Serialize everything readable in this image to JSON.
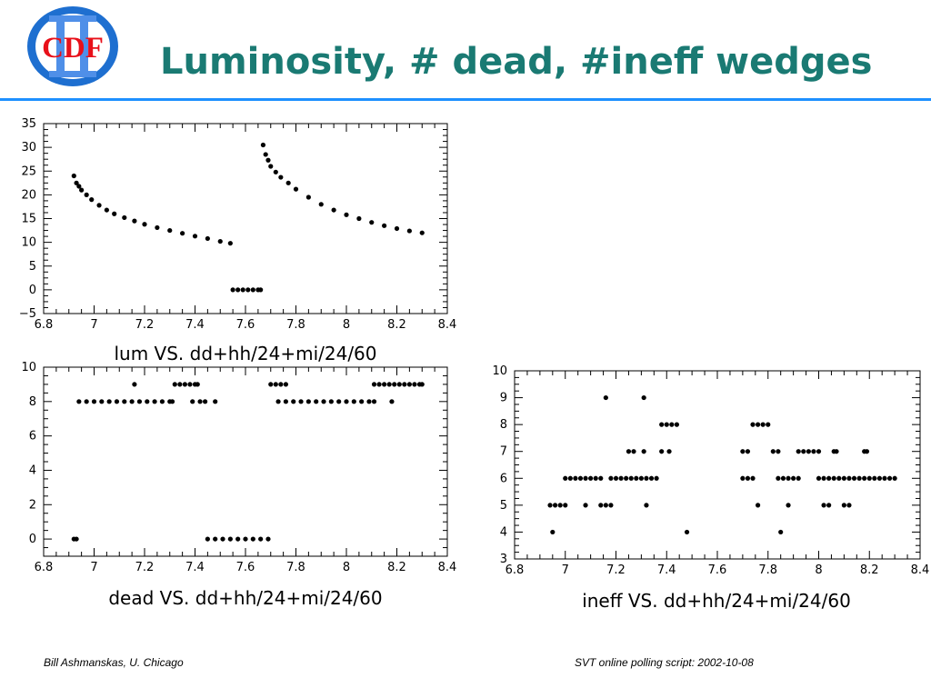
{
  "slide": {
    "title": "Luminosity, # dead, #ineff wedges",
    "logo_text": "CDF",
    "footer_left": "Bill Ashmanskas, U. Chicago",
    "footer_right": "SVT online polling script: 2002-10-08"
  },
  "colors": {
    "title": "#1a7a73",
    "rule": "#1e90ff",
    "logo_ring": "#1e6fd0",
    "logo_text": "#e8101a",
    "markers": "#000000"
  },
  "chart_data": [
    {
      "id": "lum",
      "type": "scatter",
      "xlabel": "lum VS. dd+hh/24+mi/24/60",
      "ylabel": "",
      "title": "",
      "xlim": [
        6.8,
        8.4
      ],
      "ylim": [
        -5,
        35
      ],
      "xticks": [
        6.8,
        7,
        7.2,
        7.4,
        7.6,
        7.8,
        8,
        8.2,
        8.4
      ],
      "xtick_labels": [
        "6.8",
        "7",
        "7.2",
        "7.4",
        "7.6",
        "7.8",
        "8",
        "8.2",
        "8.4"
      ],
      "yticks": [
        -5,
        0,
        5,
        10,
        15,
        20,
        25,
        30,
        35
      ],
      "ytick_labels": [
        "−5",
        "0",
        "5",
        "10",
        "15",
        "20",
        "25",
        "30",
        "35"
      ],
      "series": [
        {
          "x": [
            6.92,
            6.93,
            6.94,
            6.95,
            6.97,
            6.99,
            7.02,
            7.05,
            7.08,
            7.12,
            7.16,
            7.2,
            7.25,
            7.3,
            7.35,
            7.4,
            7.45,
            7.5,
            7.54,
            7.55,
            7.57,
            7.59,
            7.61,
            7.63,
            7.65,
            7.66,
            7.67,
            7.68,
            7.69,
            7.7,
            7.72,
            7.74,
            7.77,
            7.8,
            7.85,
            7.9,
            7.95,
            8.0,
            8.05,
            8.1,
            8.15,
            8.2,
            8.25,
            8.3
          ],
          "y": [
            24,
            22.5,
            21.8,
            21,
            20,
            19,
            17.8,
            16.8,
            16,
            15.2,
            14.5,
            13.8,
            13.1,
            12.5,
            11.9,
            11.3,
            10.8,
            10.2,
            9.8,
            0,
            0,
            0,
            0,
            0,
            0,
            0,
            30.5,
            28.5,
            27.3,
            26,
            24.8,
            23.7,
            22.5,
            21.2,
            19.5,
            18,
            16.8,
            15.8,
            15,
            14.2,
            13.5,
            12.9,
            12.4,
            12
          ]
        }
      ]
    },
    {
      "id": "dead",
      "type": "scatter",
      "xlabel": "dead VS. dd+hh/24+mi/24/60",
      "ylabel": "",
      "title": "",
      "xlim": [
        6.8,
        8.4
      ],
      "ylim": [
        -1,
        10
      ],
      "xticks": [
        6.8,
        7,
        7.2,
        7.4,
        7.6,
        7.8,
        8,
        8.2,
        8.4
      ],
      "xtick_labels": [
        "6.8",
        "7",
        "7.2",
        "7.4",
        "7.6",
        "7.8",
        "8",
        "8.2",
        "8.4"
      ],
      "yticks": [
        0,
        2,
        4,
        6,
        8,
        10
      ],
      "ytick_labels": [
        "0",
        "2",
        "4",
        "6",
        "8",
        "10"
      ],
      "series": [
        {
          "x": [
            6.92,
            6.93,
            6.94,
            6.97,
            7.0,
            7.03,
            7.06,
            7.09,
            7.12,
            7.15,
            7.18,
            7.21,
            7.24,
            7.27,
            7.3,
            7.31,
            7.16,
            7.32,
            7.34,
            7.36,
            7.38,
            7.4,
            7.41,
            7.39,
            7.42,
            7.44,
            7.48,
            7.45,
            7.48,
            7.51,
            7.54,
            7.57,
            7.6,
            7.63,
            7.66,
            7.69,
            7.7,
            7.72,
            7.74,
            7.76,
            7.73,
            7.76,
            7.79,
            7.82,
            7.85,
            7.88,
            7.91,
            7.94,
            7.97,
            8.0,
            8.03,
            8.06,
            8.09,
            8.11,
            8.11,
            8.13,
            8.15,
            8.17,
            8.19,
            8.21,
            8.23,
            8.25,
            8.27,
            8.29,
            8.3,
            8.18
          ],
          "y": [
            0,
            0,
            8,
            8,
            8,
            8,
            8,
            8,
            8,
            8,
            8,
            8,
            8,
            8,
            8,
            8,
            9,
            9,
            9,
            9,
            9,
            9,
            9,
            8,
            8,
            8,
            8,
            0,
            0,
            0,
            0,
            0,
            0,
            0,
            0,
            0,
            9,
            9,
            9,
            9,
            8,
            8,
            8,
            8,
            8,
            8,
            8,
            8,
            8,
            8,
            8,
            8,
            8,
            8,
            9,
            9,
            9,
            9,
            9,
            9,
            9,
            9,
            9,
            9,
            9,
            8
          ]
        }
      ]
    },
    {
      "id": "ineff",
      "type": "scatter",
      "xlabel": "ineff VS. dd+hh/24+mi/24/60",
      "ylabel": "",
      "title": "",
      "xlim": [
        6.8,
        8.4
      ],
      "ylim": [
        3,
        10
      ],
      "xticks": [
        6.8,
        7,
        7.2,
        7.4,
        7.6,
        7.8,
        8,
        8.2,
        8.4
      ],
      "xtick_labels": [
        "6.8",
        "7",
        "7.2",
        "7.4",
        "7.6",
        "7.8",
        "8",
        "8.2",
        "8.4"
      ],
      "yticks": [
        3,
        4,
        5,
        6,
        7,
        8,
        9,
        10
      ],
      "ytick_labels": [
        "3",
        "4",
        "5",
        "6",
        "7",
        "8",
        "9",
        "10"
      ],
      "series": [
        {
          "x": [
            6.94,
            6.96,
            6.98,
            7.0,
            6.95,
            7.0,
            7.02,
            7.04,
            7.06,
            7.08,
            7.1,
            7.12,
            7.14,
            7.08,
            7.14,
            7.16,
            7.18,
            7.16,
            7.18,
            7.2,
            7.22,
            7.24,
            7.26,
            7.28,
            7.3,
            7.32,
            7.34,
            7.36,
            7.25,
            7.27,
            7.31,
            7.31,
            7.32,
            7.38,
            7.4,
            7.42,
            7.44,
            7.38,
            7.41,
            7.48,
            7.7,
            7.72,
            7.74,
            7.7,
            7.72,
            7.76,
            7.74,
            7.76,
            7.78,
            7.8,
            7.82,
            7.84,
            7.86,
            7.88,
            7.9,
            7.92,
            7.84,
            7.85,
            7.92,
            7.94,
            7.96,
            7.98,
            8.0,
            7.88,
            8.0,
            8.02,
            8.04,
            8.06,
            8.08,
            8.1,
            8.12,
            8.14,
            8.16,
            8.18,
            8.2,
            8.22,
            8.24,
            8.26,
            8.28,
            8.3,
            8.02,
            8.04,
            8.1,
            8.12,
            8.06,
            8.07,
            8.18,
            8.19
          ],
          "y": [
            5,
            5,
            5,
            5,
            4,
            6,
            6,
            6,
            6,
            6,
            6,
            6,
            6,
            5,
            5,
            5,
            5,
            9,
            6,
            6,
            6,
            6,
            6,
            6,
            6,
            6,
            6,
            6,
            7,
            7,
            7,
            9,
            5,
            8,
            8,
            8,
            8,
            7,
            7,
            4,
            6,
            6,
            6,
            7,
            7,
            5,
            8,
            8,
            8,
            8,
            7,
            6,
            6,
            6,
            6,
            6,
            7,
            4,
            7,
            7,
            7,
            7,
            7,
            5,
            6,
            6,
            6,
            6,
            6,
            6,
            6,
            6,
            6,
            6,
            6,
            6,
            6,
            6,
            6,
            6,
            5,
            5,
            5,
            5,
            7,
            7,
            7,
            7
          ]
        }
      ]
    }
  ]
}
